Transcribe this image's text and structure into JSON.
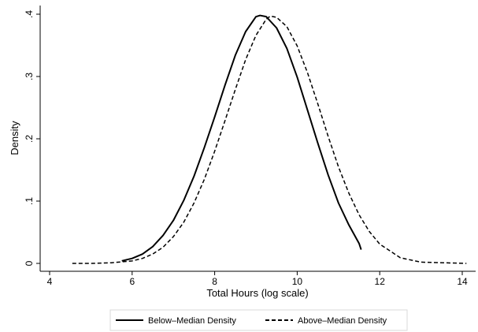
{
  "chart_data": {
    "type": "line",
    "xlabel": "Total Hours (log scale)",
    "ylabel": "Density",
    "xlim": [
      4,
      14
    ],
    "ylim": [
      0,
      0.4
    ],
    "xticks": [
      4,
      6,
      8,
      10,
      12,
      14
    ],
    "yticks": [
      0,
      0.1,
      0.2,
      0.3,
      0.4
    ],
    "xtick_labels": [
      "4",
      "6",
      "8",
      "10",
      "12",
      "14"
    ],
    "ytick_labels": [
      "0",
      ".1",
      ".2",
      ".3",
      ".4"
    ],
    "grid": false,
    "legend_position": "bottom",
    "series": [
      {
        "name": "Below–Median Density",
        "style": "solid",
        "color": "#000000",
        "points": [
          [
            5.75,
            0.004
          ],
          [
            6,
            0.008
          ],
          [
            6.25,
            0.015
          ],
          [
            6.5,
            0.027
          ],
          [
            6.75,
            0.045
          ],
          [
            7,
            0.069
          ],
          [
            7.25,
            0.101
          ],
          [
            7.5,
            0.14
          ],
          [
            7.75,
            0.186
          ],
          [
            8,
            0.235
          ],
          [
            8.25,
            0.286
          ],
          [
            8.5,
            0.334
          ],
          [
            8.75,
            0.372
          ],
          [
            9,
            0.396
          ],
          [
            9.1,
            0.398
          ],
          [
            9.25,
            0.396
          ],
          [
            9.5,
            0.378
          ],
          [
            9.75,
            0.345
          ],
          [
            10,
            0.299
          ],
          [
            10.25,
            0.246
          ],
          [
            10.5,
            0.193
          ],
          [
            10.75,
            0.142
          ],
          [
            11,
            0.097
          ],
          [
            11.25,
            0.062
          ],
          [
            11.5,
            0.032
          ],
          [
            11.55,
            0.022
          ]
        ]
      },
      {
        "name": "Above–Median Density",
        "style": "dashed",
        "color": "#000000",
        "points": [
          [
            4.55,
            0.0
          ],
          [
            5,
            0.0
          ],
          [
            5.5,
            0.001
          ],
          [
            6,
            0.004
          ],
          [
            6.25,
            0.008
          ],
          [
            6.5,
            0.015
          ],
          [
            6.75,
            0.026
          ],
          [
            7,
            0.043
          ],
          [
            7.25,
            0.066
          ],
          [
            7.5,
            0.097
          ],
          [
            7.75,
            0.135
          ],
          [
            8,
            0.18
          ],
          [
            8.25,
            0.229
          ],
          [
            8.5,
            0.279
          ],
          [
            8.75,
            0.327
          ],
          [
            9,
            0.366
          ],
          [
            9.25,
            0.392
          ],
          [
            9.35,
            0.397
          ],
          [
            9.5,
            0.395
          ],
          [
            9.75,
            0.38
          ],
          [
            10,
            0.349
          ],
          [
            10.25,
            0.306
          ],
          [
            10.5,
            0.256
          ],
          [
            10.75,
            0.204
          ],
          [
            11,
            0.155
          ],
          [
            11.25,
            0.113
          ],
          [
            11.5,
            0.078
          ],
          [
            11.75,
            0.051
          ],
          [
            12,
            0.031
          ],
          [
            12.5,
            0.009
          ],
          [
            13,
            0.002
          ],
          [
            14.1,
            0.0
          ]
        ]
      }
    ]
  }
}
